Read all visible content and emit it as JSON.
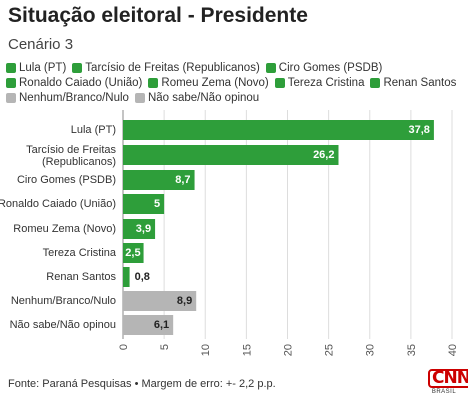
{
  "chart_data": {
    "type": "bar",
    "orientation": "horizontal",
    "title": "Situação eleitoral - Presidente",
    "subtitle": "Cenário 3",
    "categories": [
      "Lula (PT)",
      "Tarcísio de Freitas (Republicanos)",
      "Ciro Gomes (PSDB)",
      "Ronaldo Caiado (União)",
      "Romeu Zema (Novo)",
      "Tereza Cristina",
      "Renan Santos",
      "Nenhum/Branco/Nulo",
      "Não sabe/Não opinou"
    ],
    "values": [
      37.8,
      26.2,
      8.7,
      5,
      3.9,
      2.5,
      0.8,
      8.9,
      6.1
    ],
    "value_labels": [
      "37,8",
      "26,2",
      "8,7",
      "5",
      "3,9",
      "2,5",
      "0,8",
      "8,9",
      "6,1"
    ],
    "bar_colors": [
      "#2e9e3a",
      "#2e9e3a",
      "#2e9e3a",
      "#2e9e3a",
      "#2e9e3a",
      "#2e9e3a",
      "#2e9e3a",
      "#b5b5b5",
      "#b5b5b5"
    ],
    "legend": [
      [
        {
          "label": "Lula (PT)",
          "color": "#2e9e3a"
        },
        {
          "label": "Tarcísio de Freitas (Republicanos)",
          "color": "#2e9e3a"
        },
        {
          "label": "Ciro Gomes (PSDB)",
          "color": "#2e9e3a"
        }
      ],
      [
        {
          "label": "Ronaldo Caiado (União)",
          "color": "#2e9e3a"
        },
        {
          "label": "Romeu Zema (Novo)",
          "color": "#2e9e3a"
        },
        {
          "label": "Tereza Cristina",
          "color": "#2e9e3a"
        },
        {
          "label": "Renan Santos",
          "color": "#2e9e3a"
        }
      ],
      [
        {
          "label": "Nenhum/Branco/Nulo",
          "color": "#b5b5b5"
        },
        {
          "label": "Não sabe/Não opinou",
          "color": "#b5b5b5"
        }
      ]
    ],
    "xlim": [
      0,
      40
    ],
    "xticks": [
      0,
      5,
      10,
      15,
      20,
      25,
      30,
      35,
      40
    ],
    "grid": true,
    "legend_position": "top",
    "xlabel": "",
    "ylabel": ""
  },
  "footer": {
    "source": "Fonte: Paraná Pesquisas • Margem de erro: +- 2,2 p.p."
  },
  "logo": {
    "name": "CNN",
    "sub": "BRASIL"
  },
  "colors": {
    "green": "#2e9e3a",
    "gray": "#b5b5b5",
    "logo_red": "#cc0000"
  }
}
